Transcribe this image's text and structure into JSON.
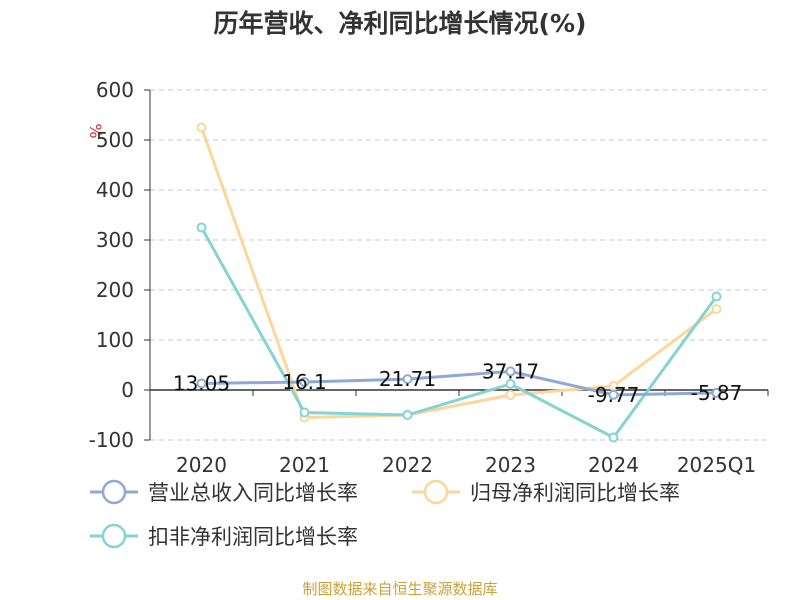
{
  "chart_data": {
    "type": "line",
    "title": "历年营收、净利同比增长情况(%)",
    "y_unit": "%",
    "categories": [
      "2020",
      "2021",
      "2022",
      "2023",
      "2024",
      "2025Q1"
    ],
    "ylim": [
      -100,
      600
    ],
    "yticks": [
      "600",
      "500",
      "400",
      "300",
      "200",
      "100",
      "0",
      "-100"
    ],
    "grid": true,
    "legend_position": "bottom",
    "series": [
      {
        "name": "营业总收入同比增长率",
        "color": "#8fa9d6",
        "values": [
          13.05,
          16.1,
          21.71,
          37.17,
          -9.77,
          -5.87
        ],
        "labels": [
          "13.05",
          "16.1",
          "21.71",
          "37.17",
          "-9.77",
          "-5.87"
        ]
      },
      {
        "name": "归母净利润同比增长率",
        "color": "#fbd89a",
        "values": [
          525,
          -55,
          -50,
          -10,
          8,
          162
        ]
      },
      {
        "name": "扣非净利润同比增长率",
        "color": "#86d3d3",
        "values": [
          325,
          -45,
          -50,
          12,
          -95,
          187
        ]
      }
    ]
  },
  "footer": {
    "source": "制图数据来自恒生聚源数据库"
  }
}
